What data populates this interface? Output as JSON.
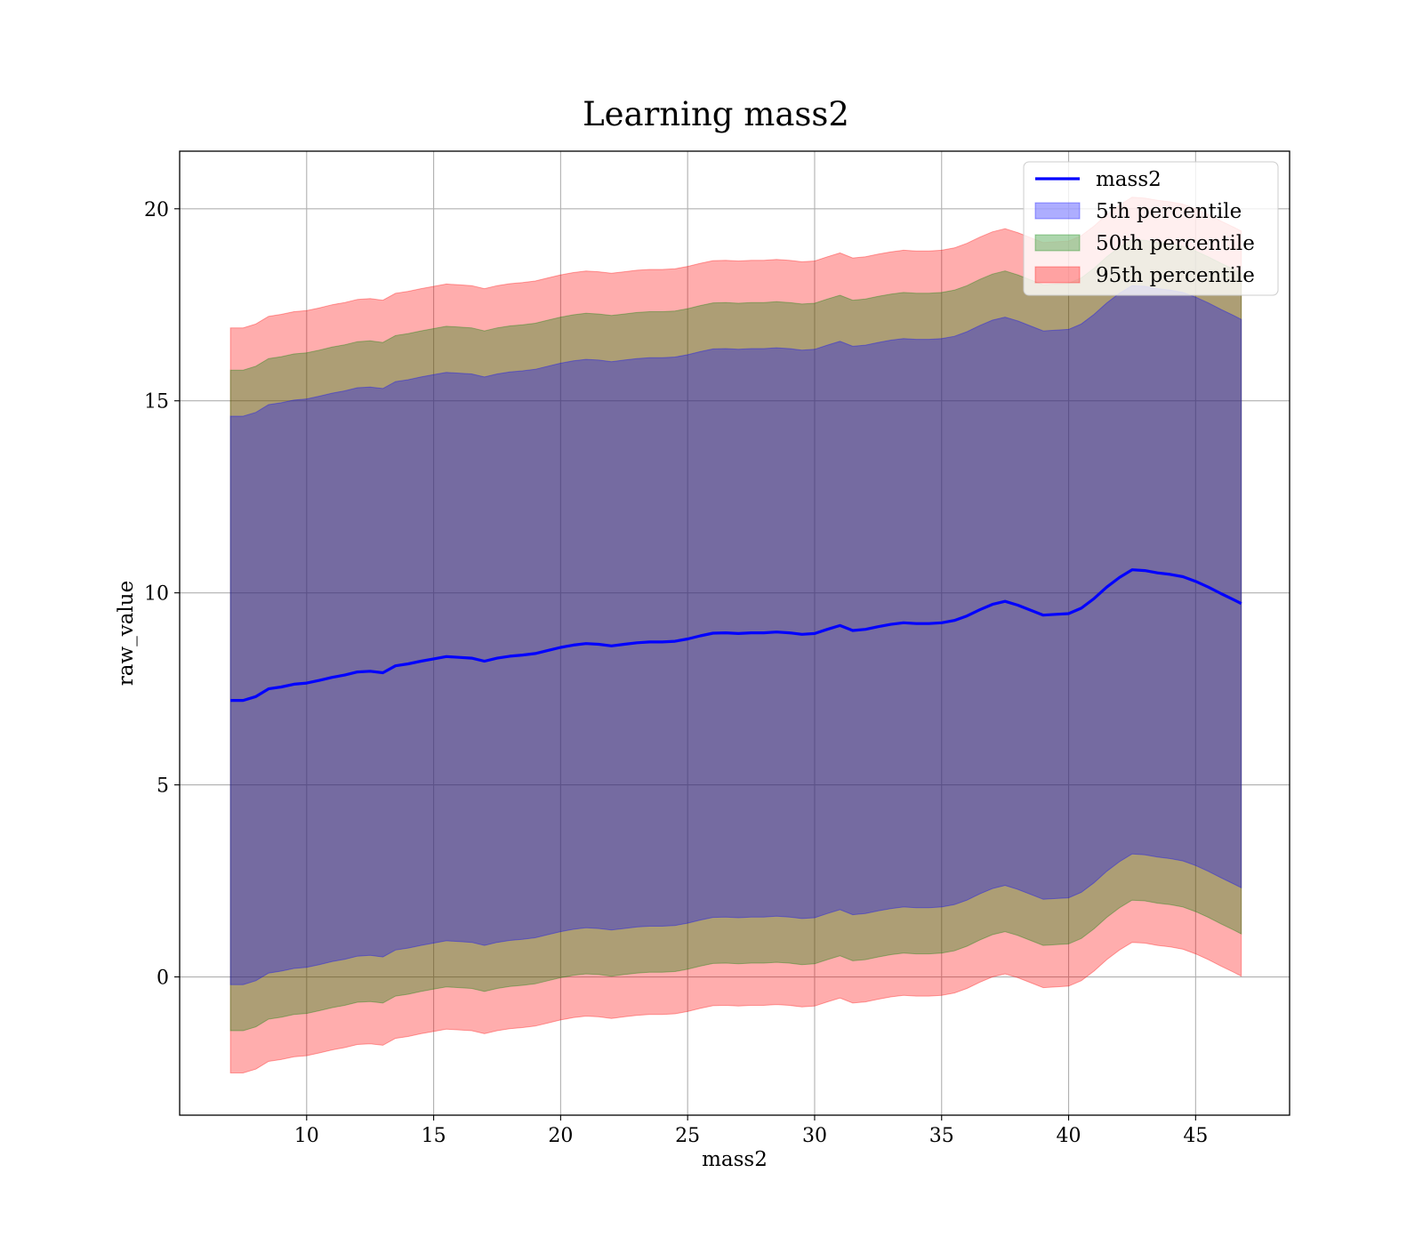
{
  "chart_data": {
    "type": "area",
    "title": "Learning mass2",
    "xlabel": "mass2",
    "ylabel": "raw_value",
    "xlim": [
      5,
      48.7
    ],
    "ylim": [
      -3.6,
      21.5
    ],
    "xticks": [
      10,
      15,
      20,
      25,
      30,
      35,
      40,
      45
    ],
    "yticks": [
      0,
      5,
      10,
      15,
      20
    ],
    "grid": true,
    "legend_position": "upper right",
    "x": [
      7,
      7.5,
      8,
      8.5,
      9,
      9.5,
      10,
      10.5,
      11,
      11.5,
      12,
      12.5,
      13,
      13.5,
      14,
      14.5,
      15,
      15.5,
      16,
      16.5,
      17,
      17.5,
      18,
      18.5,
      19,
      19.5,
      20,
      20.5,
      21,
      21.5,
      22,
      22.5,
      23,
      23.5,
      24,
      24.5,
      25,
      25.5,
      26,
      26.5,
      27,
      27.5,
      28,
      28.5,
      29,
      29.5,
      30,
      30.5,
      31,
      31.5,
      32,
      32.5,
      33,
      33.5,
      34,
      34.5,
      35,
      35.5,
      36,
      36.5,
      37,
      37.5,
      38,
      38.5,
      39,
      39.5,
      40,
      40.5,
      41,
      41.5,
      42,
      42.5,
      43,
      43.5,
      44,
      44.5,
      45,
      45.5,
      46,
      46.5,
      46.8
    ],
    "series": [
      {
        "name": "mass2",
        "kind": "line",
        "color": "#0000ff",
        "values": [
          7.2,
          7.2,
          7.3,
          7.5,
          7.55,
          7.62,
          7.65,
          7.72,
          7.8,
          7.86,
          7.94,
          7.96,
          7.92,
          8.1,
          8.15,
          8.22,
          8.28,
          8.34,
          8.32,
          8.3,
          8.22,
          8.3,
          8.35,
          8.38,
          8.42,
          8.5,
          8.58,
          8.64,
          8.68,
          8.66,
          8.62,
          8.66,
          8.7,
          8.72,
          8.72,
          8.74,
          8.8,
          8.88,
          8.95,
          8.96,
          8.94,
          8.96,
          8.96,
          8.98,
          8.96,
          8.92,
          8.94,
          9.05,
          9.15,
          9.02,
          9.05,
          9.12,
          9.18,
          9.22,
          9.2,
          9.2,
          9.22,
          9.28,
          9.4,
          9.56,
          9.7,
          9.78,
          9.68,
          9.55,
          9.42,
          9.44,
          9.46,
          9.6,
          9.85,
          10.15,
          10.4,
          10.6,
          10.58,
          10.52,
          10.48,
          10.42,
          10.3,
          10.15,
          9.98,
          9.82,
          9.72
        ]
      },
      {
        "name": "5th percentile",
        "kind": "band",
        "color": "#0000ff",
        "lower": [
          -0.2,
          -0.2,
          -0.1,
          0.1,
          0.15,
          0.22,
          0.25,
          0.32,
          0.4,
          0.46,
          0.54,
          0.56,
          0.52,
          0.7,
          0.75,
          0.82,
          0.88,
          0.94,
          0.92,
          0.9,
          0.82,
          0.9,
          0.95,
          0.98,
          1.02,
          1.1,
          1.18,
          1.24,
          1.28,
          1.26,
          1.22,
          1.26,
          1.3,
          1.32,
          1.32,
          1.34,
          1.4,
          1.48,
          1.55,
          1.56,
          1.54,
          1.56,
          1.56,
          1.58,
          1.56,
          1.52,
          1.54,
          1.65,
          1.75,
          1.62,
          1.65,
          1.72,
          1.78,
          1.82,
          1.8,
          1.8,
          1.82,
          1.88,
          2.0,
          2.16,
          2.3,
          2.38,
          2.28,
          2.15,
          2.02,
          2.04,
          2.06,
          2.2,
          2.45,
          2.75,
          3.0,
          3.2,
          3.18,
          3.12,
          3.08,
          3.02,
          2.9,
          2.75,
          2.58,
          2.42,
          2.32
        ],
        "upper": [
          14.6,
          14.6,
          14.7,
          14.9,
          14.95,
          15.02,
          15.05,
          15.12,
          15.2,
          15.26,
          15.34,
          15.36,
          15.32,
          15.5,
          15.55,
          15.62,
          15.68,
          15.74,
          15.72,
          15.7,
          15.62,
          15.7,
          15.75,
          15.78,
          15.82,
          15.9,
          15.98,
          16.04,
          16.08,
          16.06,
          16.02,
          16.06,
          16.1,
          16.12,
          16.12,
          16.14,
          16.2,
          16.28,
          16.35,
          16.36,
          16.34,
          16.36,
          16.36,
          16.38,
          16.36,
          16.32,
          16.34,
          16.45,
          16.55,
          16.42,
          16.45,
          16.52,
          16.58,
          16.62,
          16.6,
          16.6,
          16.62,
          16.68,
          16.8,
          16.96,
          17.1,
          17.18,
          17.08,
          16.95,
          16.82,
          16.84,
          16.86,
          17.0,
          17.25,
          17.55,
          17.8,
          18.0,
          17.98,
          17.92,
          17.88,
          17.82,
          17.7,
          17.55,
          17.38,
          17.22,
          17.12
        ]
      },
      {
        "name": "50th percentile",
        "kind": "band",
        "color": "#008000",
        "lower": [
          -1.4,
          -1.4,
          -1.3,
          -1.1,
          -1.05,
          -0.98,
          -0.95,
          -0.88,
          -0.8,
          -0.74,
          -0.66,
          -0.64,
          -0.68,
          -0.5,
          -0.45,
          -0.38,
          -0.32,
          -0.26,
          -0.28,
          -0.3,
          -0.38,
          -0.3,
          -0.25,
          -0.22,
          -0.18,
          -0.1,
          -0.02,
          0.04,
          0.08,
          0.06,
          0.02,
          0.06,
          0.1,
          0.12,
          0.12,
          0.14,
          0.2,
          0.28,
          0.35,
          0.36,
          0.34,
          0.36,
          0.36,
          0.38,
          0.36,
          0.32,
          0.34,
          0.45,
          0.55,
          0.42,
          0.45,
          0.52,
          0.58,
          0.62,
          0.6,
          0.6,
          0.62,
          0.68,
          0.8,
          0.96,
          1.1,
          1.18,
          1.08,
          0.95,
          0.82,
          0.84,
          0.86,
          1.0,
          1.25,
          1.55,
          1.8,
          2.0,
          1.98,
          1.92,
          1.88,
          1.82,
          1.7,
          1.55,
          1.38,
          1.22,
          1.12
        ],
        "upper": [
          15.8,
          15.8,
          15.9,
          16.1,
          16.15,
          16.22,
          16.25,
          16.32,
          16.4,
          16.46,
          16.54,
          16.56,
          16.52,
          16.7,
          16.75,
          16.82,
          16.88,
          16.94,
          16.92,
          16.9,
          16.82,
          16.9,
          16.95,
          16.98,
          17.02,
          17.1,
          17.18,
          17.24,
          17.28,
          17.26,
          17.22,
          17.26,
          17.3,
          17.32,
          17.32,
          17.34,
          17.4,
          17.48,
          17.55,
          17.56,
          17.54,
          17.56,
          17.56,
          17.58,
          17.56,
          17.52,
          17.54,
          17.65,
          17.75,
          17.62,
          17.65,
          17.72,
          17.78,
          17.82,
          17.8,
          17.8,
          17.82,
          17.88,
          18.0,
          18.16,
          18.3,
          18.38,
          18.28,
          18.15,
          18.02,
          18.04,
          18.06,
          18.2,
          18.45,
          18.75,
          19.0,
          19.2,
          19.18,
          19.12,
          19.08,
          19.02,
          18.9,
          18.75,
          18.58,
          18.42,
          18.32
        ]
      },
      {
        "name": "95th percentile",
        "kind": "band",
        "color": "#ff0000",
        "lower": [
          -2.5,
          -2.5,
          -2.4,
          -2.2,
          -2.15,
          -2.08,
          -2.05,
          -1.98,
          -1.9,
          -1.84,
          -1.76,
          -1.74,
          -1.78,
          -1.6,
          -1.55,
          -1.48,
          -1.42,
          -1.36,
          -1.38,
          -1.4,
          -1.48,
          -1.4,
          -1.35,
          -1.32,
          -1.28,
          -1.2,
          -1.12,
          -1.06,
          -1.02,
          -1.04,
          -1.08,
          -1.04,
          -1.0,
          -0.98,
          -0.98,
          -0.96,
          -0.9,
          -0.82,
          -0.75,
          -0.74,
          -0.76,
          -0.74,
          -0.74,
          -0.72,
          -0.74,
          -0.78,
          -0.76,
          -0.65,
          -0.55,
          -0.68,
          -0.65,
          -0.58,
          -0.52,
          -0.48,
          -0.5,
          -0.5,
          -0.48,
          -0.42,
          -0.3,
          -0.14,
          0.0,
          0.08,
          -0.02,
          -0.15,
          -0.28,
          -0.26,
          -0.24,
          -0.1,
          0.15,
          0.45,
          0.7,
          0.9,
          0.88,
          0.82,
          0.78,
          0.72,
          0.6,
          0.45,
          0.28,
          0.12,
          0.02
        ],
        "upper": [
          16.9,
          16.9,
          17.0,
          17.2,
          17.25,
          17.32,
          17.35,
          17.42,
          17.5,
          17.56,
          17.64,
          17.66,
          17.62,
          17.8,
          17.85,
          17.92,
          17.98,
          18.04,
          18.02,
          18.0,
          17.92,
          18.0,
          18.05,
          18.08,
          18.12,
          18.2,
          18.28,
          18.34,
          18.38,
          18.36,
          18.32,
          18.36,
          18.4,
          18.42,
          18.42,
          18.44,
          18.5,
          18.58,
          18.65,
          18.66,
          18.64,
          18.66,
          18.66,
          18.68,
          18.66,
          18.62,
          18.64,
          18.75,
          18.85,
          18.72,
          18.75,
          18.82,
          18.88,
          18.92,
          18.9,
          18.9,
          18.92,
          18.98,
          19.1,
          19.26,
          19.4,
          19.48,
          19.38,
          19.25,
          19.12,
          19.14,
          19.16,
          19.3,
          19.55,
          19.85,
          20.1,
          20.3,
          20.28,
          20.22,
          20.18,
          20.12,
          20.0,
          19.85,
          19.68,
          19.52,
          19.42
        ]
      }
    ]
  }
}
